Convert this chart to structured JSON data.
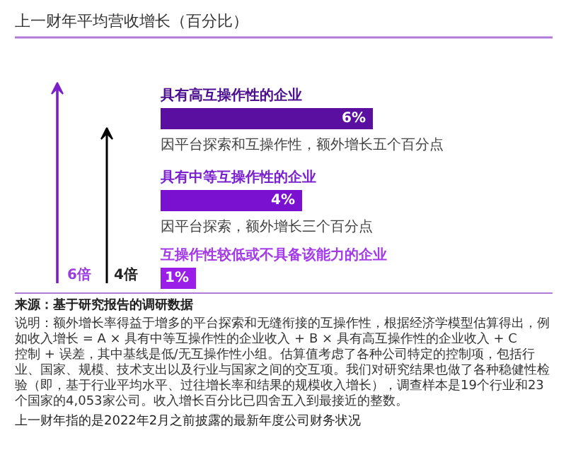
{
  "chart_data": {
    "type": "bar",
    "orientation": "horizontal",
    "title": "上一财年平均营收增长（百分比）",
    "categories": [
      "具有高互操作性的企业",
      "具有中等互操作性的企业",
      "互操作性较低或不具备该能力的企业"
    ],
    "values": [
      6,
      4,
      1
    ],
    "colors": [
      "#5a0fa0",
      "#7a10d0",
      "#9b1ee8"
    ],
    "value_labels": [
      "6%",
      "4%",
      "1%"
    ],
    "annotations": [
      "因平台探索和互操作性，额外增长五个百分点",
      "因平台探索，额外增长三个百分点",
      "6倍",
      "4倍",
      "来源：基于研究报告的调研数据",
      "说明：额外增长率得益于增多的平台探索和无缝衔接的互操作性，根据经济学模型估算得出，例如收入增长 = A × 具有中等互操作性的企业收入 + B × 具有高互操作性的企业收入 + C 控制 + 误差，其中基线是低/无互操作性小组。估算值考虑了各种公司特定的控制项，包括行业、国家、规模、技术支出以及行业与国家之间的交互项。我们对研究结果也做了各种稳健性检验（即，基于行业平均水平、过往增长率和结果的规模收入增长），调查样本是19个行业和23个国家的4,053家公司。收入增长百分比已四舍五入到最接近的整数。",
      "上一财年指的是2022年2月之前披露的最新年度公司财务状况"
    ]
  }
}
